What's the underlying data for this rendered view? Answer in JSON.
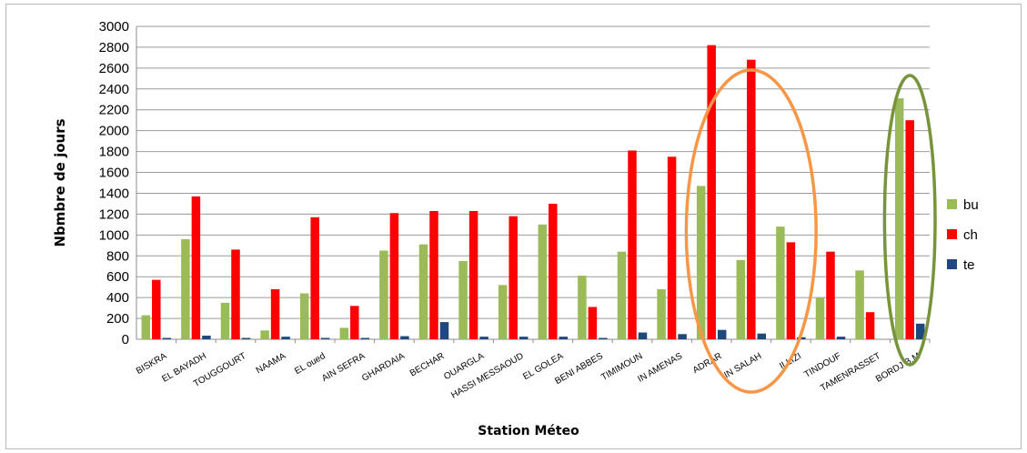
{
  "chart_data": {
    "type": "bar",
    "title": "",
    "xlabel": "Station Méteo",
    "ylabel": "Nbmbre de jours",
    "ylim": [
      0,
      3000
    ],
    "ytick_step": 200,
    "grid": true,
    "legend_position": "right",
    "categories": [
      "BISKRA",
      "EL BAYADH",
      "TOUGGOURT",
      "NAAMA",
      "EL oued",
      "AIN SEFRA",
      "GHARDAIA",
      "BECHAR",
      "OUARGLA",
      "HASSI MESSAOUD",
      "EL GOLEA",
      "BENI ABBES",
      "TIMIMOUN",
      "IN AMENAS",
      "ADRAR",
      "IN SALAH",
      "ILLIZI",
      "TINDOUF",
      "TAMENRASSET",
      "BORDJ B.M"
    ],
    "series": [
      {
        "name": "bu",
        "color": "#9bbb59",
        "values": [
          230,
          960,
          350,
          85,
          440,
          110,
          850,
          910,
          750,
          520,
          1100,
          610,
          840,
          480,
          1470,
          760,
          1080,
          400,
          660,
          2310
        ]
      },
      {
        "name": "ch",
        "color": "#ff0000",
        "values": [
          570,
          1370,
          860,
          480,
          1170,
          320,
          1210,
          1230,
          1230,
          1180,
          1300,
          310,
          1810,
          1750,
          2820,
          2680,
          930,
          840,
          260,
          2100
        ]
      },
      {
        "name": "te",
        "color": "#1f497d",
        "values": [
          10,
          35,
          5,
          25,
          10,
          5,
          30,
          165,
          25,
          25,
          25,
          5,
          65,
          50,
          90,
          55,
          20,
          25,
          0,
          150
        ]
      }
    ],
    "annotations": [
      {
        "type": "ellipse",
        "color": "#f79646",
        "around": [
          "ADRAR",
          "IN SALAH",
          "ILLIZI"
        ]
      },
      {
        "type": "ellipse",
        "color": "#77933c",
        "around": [
          "BORDJ B.M"
        ]
      }
    ]
  }
}
